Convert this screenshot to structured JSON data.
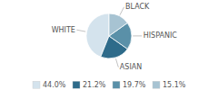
{
  "chart_data": {
    "type": "pie",
    "categories": [
      "WHITE",
      "ASIAN",
      "HISPANIC",
      "BLACK"
    ],
    "values": [
      44.0,
      21.2,
      19.7,
      15.1
    ],
    "value_labels": [
      "44.0%",
      "21.2%",
      "19.7%",
      "15.1%"
    ],
    "colors": [
      "#d4e3ed",
      "#2e6b8a",
      "#5a90a8",
      "#a7c3d2"
    ],
    "legend": "bottom"
  }
}
